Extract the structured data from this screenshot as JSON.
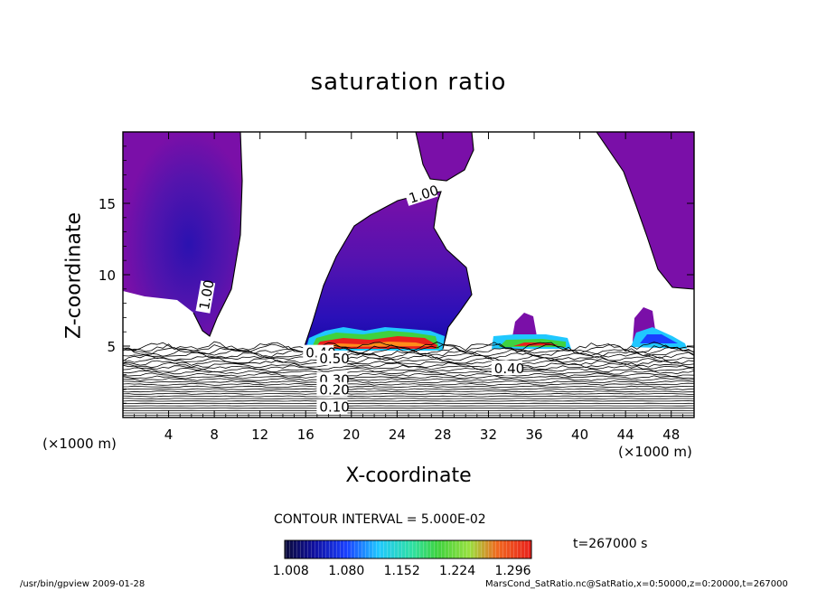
{
  "chart_data": {
    "type": "heatmap",
    "title": "saturation ratio",
    "xlabel": "X-coordinate",
    "ylabel": "Z-coordinate",
    "x_unit": "(×1000 m)",
    "x_ticks": [
      4,
      8,
      12,
      16,
      20,
      24,
      28,
      32,
      36,
      40,
      44,
      48
    ],
    "y_ticks": [
      5,
      10,
      15
    ],
    "xlim": [
      0,
      50
    ],
    "ylim": [
      0,
      20
    ],
    "contour_interval_text": "CONTOUR INTERVAL = 5.000E-02",
    "time_text": "t=267000 s",
    "colorbar": {
      "ticks": [
        "1.008",
        "1.080",
        "1.152",
        "1.224",
        "1.296"
      ],
      "tick_values": [
        1.008,
        1.08,
        1.152,
        1.224,
        1.296
      ],
      "range": [
        1.0,
        1.32
      ]
    },
    "contour_labels": [
      {
        "text": "1.00",
        "x": 25.2,
        "z": 15.0
      },
      {
        "text": "1.00",
        "x": 7.5,
        "z": 7.5
      },
      {
        "text": "0.40",
        "x": 32.5,
        "z": 3.1
      },
      {
        "text": "0.40",
        "x": 16.0,
        "z": 4.2
      },
      {
        "text": "0.50",
        "x": 17.2,
        "z": 3.8
      },
      {
        "text": "0.30",
        "x": 17.2,
        "z": 2.3
      },
      {
        "text": "0.20",
        "x": 17.2,
        "z": 1.6
      },
      {
        "text": "0.10",
        "x": 17.2,
        "z": 0.4
      }
    ],
    "features": [
      {
        "name": "supersaturated-cap-left",
        "x_range": [
          0,
          10.5
        ],
        "z_range": [
          5.7,
          20
        ]
      },
      {
        "name": "supersaturated-plume-center",
        "x_range": [
          16,
          30.5
        ],
        "z_range": [
          5,
          15.5
        ]
      },
      {
        "name": "supersaturated-cloud-top",
        "x_range": [
          26.5,
          30.5
        ],
        "z_range": [
          17,
          20
        ]
      },
      {
        "name": "supersaturated-cap-right",
        "x_range": [
          41,
          50
        ],
        "z_range": [
          8.5,
          20
        ]
      },
      {
        "name": "condensate-layer-center",
        "x_range": [
          16,
          28
        ],
        "z_range": [
          5,
          5.6
        ],
        "max_value": 1.3
      },
      {
        "name": "condensate-layer-mid",
        "x_range": [
          32.5,
          38.5
        ],
        "z_range": [
          5,
          6.8
        ],
        "max_value": 1.2
      },
      {
        "name": "condensate-layer-right",
        "x_range": [
          44.5,
          49
        ],
        "z_range": [
          5,
          7.6
        ],
        "max_value": 1.15
      }
    ]
  },
  "footer": {
    "left": "/usr/bin/gpview   2009-01-28",
    "right": "MarsCond_SatRatio.nc@SatRatio,x=0:50000,z=0:20000,t=267000"
  },
  "colors": {
    "purple": "#7a0fa8",
    "deep_blue": "#1a10b8",
    "cyan": "#20c8ff",
    "green": "#3fd23f",
    "red": "#e8201c",
    "orange": "#ff8c1a"
  }
}
